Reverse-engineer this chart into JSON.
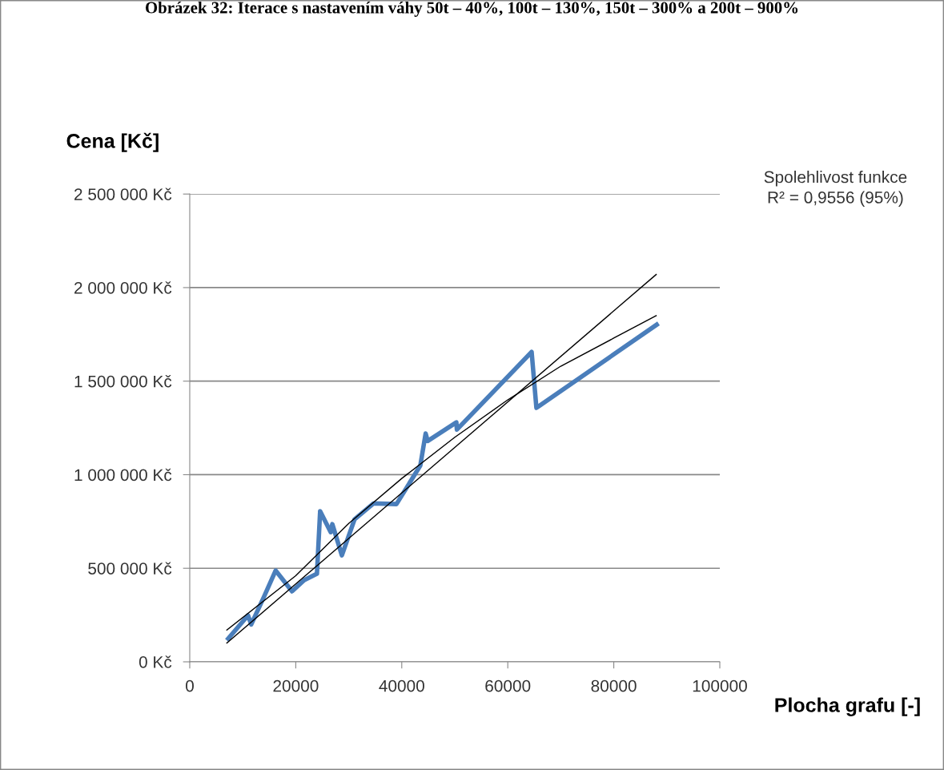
{
  "chart_data": {
    "type": "line",
    "title": "Obrázek 32: Iterace s nastavením váhy 50t – 40%, 100t – 130%, 150t – 300% a 200t – 900%",
    "xlabel": "Plocha grafu [-]",
    "ylabel": "Cena [Kč]",
    "annotations": [
      "Spolehlivost funkce\nR² = 0,9556 (95%)"
    ],
    "series": [
      {
        "color": "#4a7ebb",
        "x": [
          7250,
          11000,
          11600,
          14000,
          16200,
          19300,
          21600,
          24000,
          24600,
          26600,
          26900,
          28700,
          31100,
          34700,
          39000,
          43500,
          44500,
          44900,
          50300,
          50400,
          64500,
          65400,
          88100
        ],
        "values": [
          124000,
          248000,
          200000,
          347000,
          488000,
          377000,
          437000,
          471000,
          805000,
          693000,
          736000,
          569000,
          762000,
          847000,
          843000,
          1049000,
          1220000,
          1180000,
          1280000,
          1241000,
          1656000,
          1357000,
          1802000
        ]
      },
      {
        "color": "#000000",
        "x": [
          7000,
          88000
        ],
        "values": [
          100000,
          2070000
        ]
      },
      {
        "color": "#000000",
        "x": [
          7000,
          20000,
          30000,
          40000,
          50000,
          60000,
          70000,
          80000,
          88000
        ],
        "values": [
          170000,
          460000,
          740000,
          980000,
          1200000,
          1400000,
          1580000,
          1730000,
          1850000
        ]
      }
    ],
    "xlim": [
      0,
      100000
    ],
    "xticks": [
      0,
      20000,
      40000,
      60000,
      80000,
      100000
    ],
    "ylim": [
      0,
      2500000
    ],
    "yticks": [
      {
        "value": 0,
        "label": "0 Kč"
      },
      {
        "value": 500000,
        "label": "500 000 Kč"
      },
      {
        "value": 1000000,
        "label": "1 000 000 Kč"
      },
      {
        "value": 1500000,
        "label": "1 500 000 Kč"
      },
      {
        "value": 2000000,
        "label": "2 000 000 Kč"
      },
      {
        "value": 2500000,
        "label": "2 500 000 Kč"
      }
    ],
    "grid": "y",
    "line_style": "solid"
  }
}
